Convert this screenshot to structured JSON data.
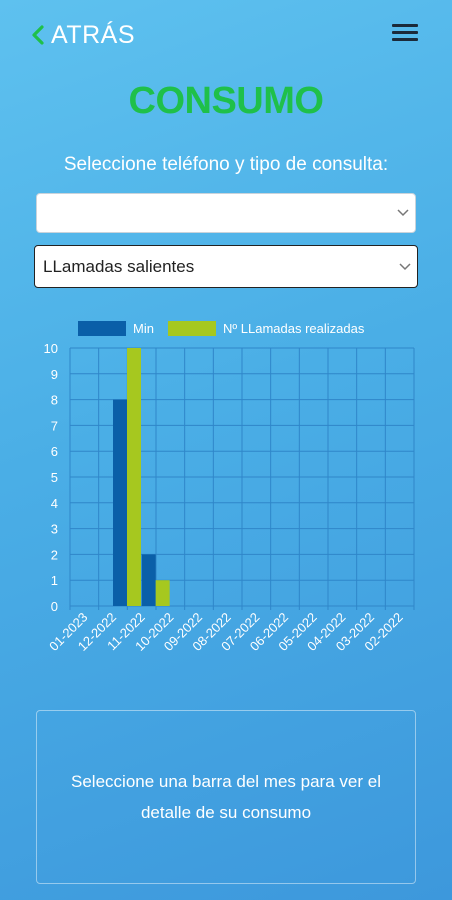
{
  "header": {
    "back_label": "ATRÁS",
    "menu_icon": "hamburger-menu-icon"
  },
  "page": {
    "title": "CONSUMO",
    "subtitle": "Seleccione teléfono y tipo de consulta:"
  },
  "selects": {
    "phone_value": "",
    "type_value": "LLamadas salientes"
  },
  "chart_data": {
    "type": "bar",
    "categories": [
      "01-2023",
      "12-2022",
      "11-2022",
      "10-2022",
      "09-2022",
      "08-2022",
      "07-2022",
      "06-2022",
      "05-2022",
      "04-2022",
      "03-2022",
      "02-2022"
    ],
    "series": [
      {
        "name": "Min",
        "color": "#0a5fa8",
        "values": [
          0,
          8,
          2,
          0,
          0,
          0,
          0,
          0,
          0,
          0,
          0,
          0
        ]
      },
      {
        "name": "Nº LLamadas realizadas",
        "color": "#a6c81f",
        "values": [
          0,
          10,
          1,
          0,
          0,
          0,
          0,
          0,
          0,
          0,
          0,
          0
        ]
      }
    ],
    "ylim": [
      0,
      10
    ],
    "yticks": [
      0,
      1,
      2,
      3,
      4,
      5,
      6,
      7,
      8,
      9,
      10
    ],
    "grid": true,
    "legend": "top"
  },
  "info": {
    "message": "Seleccione una barra del mes para ver el detalle de su consumo"
  },
  "colors": {
    "title": "#1fc04a",
    "back_chevron": "#1fc04a",
    "grid": "#2f86c9"
  }
}
